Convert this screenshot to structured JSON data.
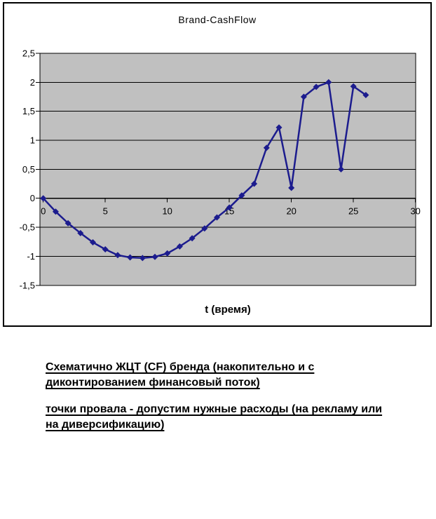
{
  "chart_data": {
    "type": "line",
    "title": "Brand-CashFlow",
    "xlabel": "t (время)",
    "ylabel": "",
    "x": [
      0,
      1,
      2,
      3,
      4,
      5,
      6,
      7,
      8,
      9,
      10,
      11,
      12,
      13,
      14,
      15,
      16,
      17,
      18,
      19,
      20,
      21,
      22,
      23,
      24,
      25,
      26
    ],
    "y": [
      0,
      -0.23,
      -0.43,
      -0.6,
      -0.76,
      -0.88,
      -0.98,
      -1.02,
      -1.03,
      -1.01,
      -0.95,
      -0.83,
      -0.69,
      -0.52,
      -0.33,
      -0.16,
      0.05,
      0.25,
      0.87,
      1.22,
      0.18,
      1.75,
      1.92,
      2.0,
      0.5,
      1.93,
      1.78
    ],
    "xlim": [
      0,
      30
    ],
    "ylim": [
      -1.5,
      2.5
    ],
    "xticks": [
      0,
      5,
      10,
      15,
      20,
      25,
      30
    ],
    "xtick_labels": [
      "0",
      "5",
      "10",
      "15",
      "20",
      "25",
      "30"
    ],
    "yticks": [
      2.5,
      2,
      1.5,
      1,
      0.5,
      0,
      -0.5,
      -1,
      -1.5
    ],
    "ytick_labels": [
      "2,5",
      "2",
      "1,5",
      "1",
      "0,5",
      "0",
      "-0,5",
      "-1",
      "-1,5"
    ],
    "grid": true,
    "legend": false,
    "marker": "diamond",
    "colors": {
      "series": "#1c1c8e",
      "plot_bg": "#c0c0c0",
      "grid": "#000000",
      "axis": "#000000",
      "frame_border": "#000000",
      "text": "#000000"
    }
  },
  "notes": {
    "p1": {
      "lines": [
        "Схематично ЖЦТ (CF) бренда (накопительно и с",
        "диконтированием финансовый поток)"
      ]
    },
    "p2": {
      "lines": [
        "точки провала - допустим нужные расходы (на рекламу или",
        "на диверсификацию)"
      ]
    }
  }
}
